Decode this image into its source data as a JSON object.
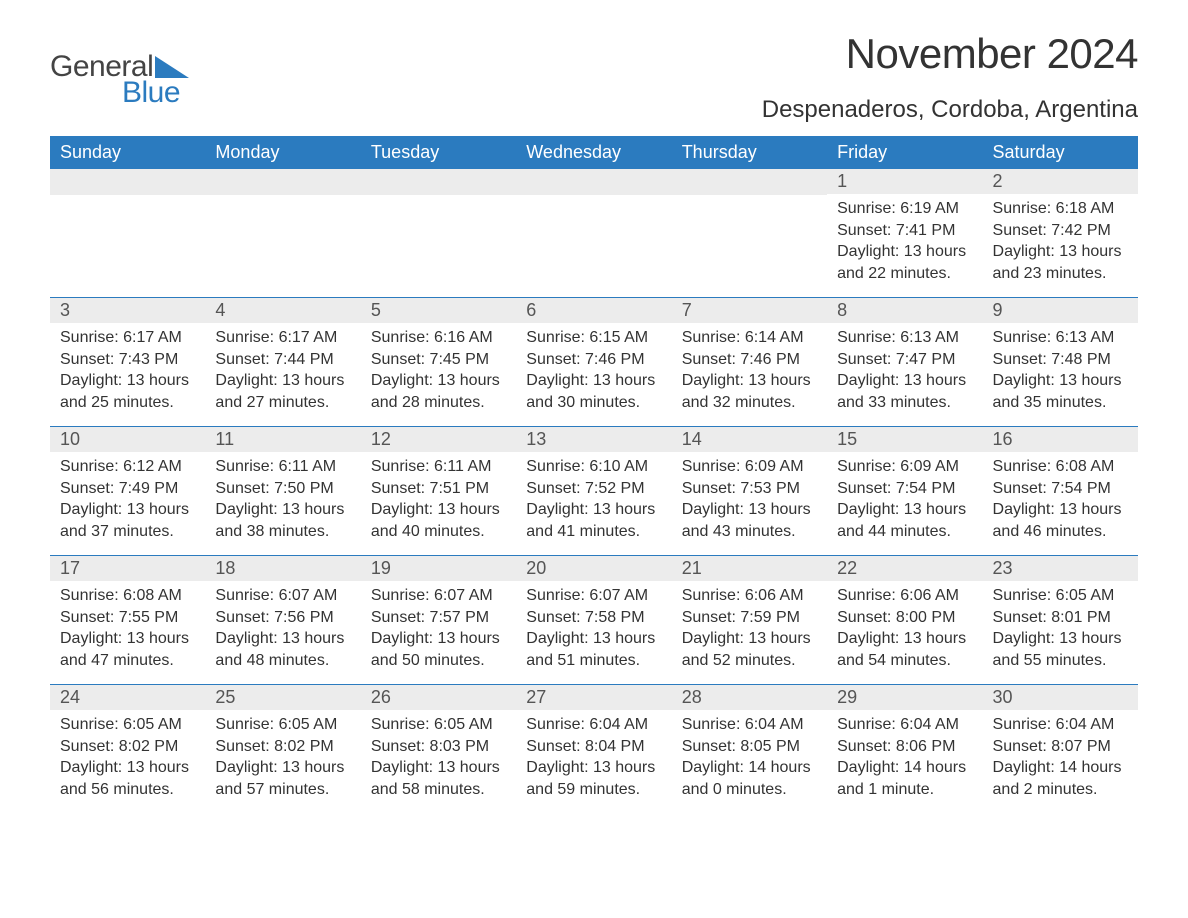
{
  "brand": {
    "part1": "General",
    "part2": "Blue",
    "triangle_color": "#2b7bbf"
  },
  "title": "November 2024",
  "location": "Despenaderos, Cordoba, Argentina",
  "colors": {
    "header_bg": "#2b7bbf",
    "header_text": "#ffffff",
    "daynum_bg": "#ececec",
    "text": "#333333",
    "row_border": "#2b7bbf",
    "page_bg": "#ffffff"
  },
  "fonts": {
    "title_size_pt": 32,
    "location_size_pt": 18,
    "dow_size_pt": 14,
    "daynum_size_pt": 14,
    "body_size_pt": 12
  },
  "dow": [
    "Sunday",
    "Monday",
    "Tuesday",
    "Wednesday",
    "Thursday",
    "Friday",
    "Saturday"
  ],
  "weeks": [
    [
      null,
      null,
      null,
      null,
      null,
      {
        "n": "1",
        "sunrise": "Sunrise: 6:19 AM",
        "sunset": "Sunset: 7:41 PM",
        "day1": "Daylight: 13 hours",
        "day2": "and 22 minutes."
      },
      {
        "n": "2",
        "sunrise": "Sunrise: 6:18 AM",
        "sunset": "Sunset: 7:42 PM",
        "day1": "Daylight: 13 hours",
        "day2": "and 23 minutes."
      }
    ],
    [
      {
        "n": "3",
        "sunrise": "Sunrise: 6:17 AM",
        "sunset": "Sunset: 7:43 PM",
        "day1": "Daylight: 13 hours",
        "day2": "and 25 minutes."
      },
      {
        "n": "4",
        "sunrise": "Sunrise: 6:17 AM",
        "sunset": "Sunset: 7:44 PM",
        "day1": "Daylight: 13 hours",
        "day2": "and 27 minutes."
      },
      {
        "n": "5",
        "sunrise": "Sunrise: 6:16 AM",
        "sunset": "Sunset: 7:45 PM",
        "day1": "Daylight: 13 hours",
        "day2": "and 28 minutes."
      },
      {
        "n": "6",
        "sunrise": "Sunrise: 6:15 AM",
        "sunset": "Sunset: 7:46 PM",
        "day1": "Daylight: 13 hours",
        "day2": "and 30 minutes."
      },
      {
        "n": "7",
        "sunrise": "Sunrise: 6:14 AM",
        "sunset": "Sunset: 7:46 PM",
        "day1": "Daylight: 13 hours",
        "day2": "and 32 minutes."
      },
      {
        "n": "8",
        "sunrise": "Sunrise: 6:13 AM",
        "sunset": "Sunset: 7:47 PM",
        "day1": "Daylight: 13 hours",
        "day2": "and 33 minutes."
      },
      {
        "n": "9",
        "sunrise": "Sunrise: 6:13 AM",
        "sunset": "Sunset: 7:48 PM",
        "day1": "Daylight: 13 hours",
        "day2": "and 35 minutes."
      }
    ],
    [
      {
        "n": "10",
        "sunrise": "Sunrise: 6:12 AM",
        "sunset": "Sunset: 7:49 PM",
        "day1": "Daylight: 13 hours",
        "day2": "and 37 minutes."
      },
      {
        "n": "11",
        "sunrise": "Sunrise: 6:11 AM",
        "sunset": "Sunset: 7:50 PM",
        "day1": "Daylight: 13 hours",
        "day2": "and 38 minutes."
      },
      {
        "n": "12",
        "sunrise": "Sunrise: 6:11 AM",
        "sunset": "Sunset: 7:51 PM",
        "day1": "Daylight: 13 hours",
        "day2": "and 40 minutes."
      },
      {
        "n": "13",
        "sunrise": "Sunrise: 6:10 AM",
        "sunset": "Sunset: 7:52 PM",
        "day1": "Daylight: 13 hours",
        "day2": "and 41 minutes."
      },
      {
        "n": "14",
        "sunrise": "Sunrise: 6:09 AM",
        "sunset": "Sunset: 7:53 PM",
        "day1": "Daylight: 13 hours",
        "day2": "and 43 minutes."
      },
      {
        "n": "15",
        "sunrise": "Sunrise: 6:09 AM",
        "sunset": "Sunset: 7:54 PM",
        "day1": "Daylight: 13 hours",
        "day2": "and 44 minutes."
      },
      {
        "n": "16",
        "sunrise": "Sunrise: 6:08 AM",
        "sunset": "Sunset: 7:54 PM",
        "day1": "Daylight: 13 hours",
        "day2": "and 46 minutes."
      }
    ],
    [
      {
        "n": "17",
        "sunrise": "Sunrise: 6:08 AM",
        "sunset": "Sunset: 7:55 PM",
        "day1": "Daylight: 13 hours",
        "day2": "and 47 minutes."
      },
      {
        "n": "18",
        "sunrise": "Sunrise: 6:07 AM",
        "sunset": "Sunset: 7:56 PM",
        "day1": "Daylight: 13 hours",
        "day2": "and 48 minutes."
      },
      {
        "n": "19",
        "sunrise": "Sunrise: 6:07 AM",
        "sunset": "Sunset: 7:57 PM",
        "day1": "Daylight: 13 hours",
        "day2": "and 50 minutes."
      },
      {
        "n": "20",
        "sunrise": "Sunrise: 6:07 AM",
        "sunset": "Sunset: 7:58 PM",
        "day1": "Daylight: 13 hours",
        "day2": "and 51 minutes."
      },
      {
        "n": "21",
        "sunrise": "Sunrise: 6:06 AM",
        "sunset": "Sunset: 7:59 PM",
        "day1": "Daylight: 13 hours",
        "day2": "and 52 minutes."
      },
      {
        "n": "22",
        "sunrise": "Sunrise: 6:06 AM",
        "sunset": "Sunset: 8:00 PM",
        "day1": "Daylight: 13 hours",
        "day2": "and 54 minutes."
      },
      {
        "n": "23",
        "sunrise": "Sunrise: 6:05 AM",
        "sunset": "Sunset: 8:01 PM",
        "day1": "Daylight: 13 hours",
        "day2": "and 55 minutes."
      }
    ],
    [
      {
        "n": "24",
        "sunrise": "Sunrise: 6:05 AM",
        "sunset": "Sunset: 8:02 PM",
        "day1": "Daylight: 13 hours",
        "day2": "and 56 minutes."
      },
      {
        "n": "25",
        "sunrise": "Sunrise: 6:05 AM",
        "sunset": "Sunset: 8:02 PM",
        "day1": "Daylight: 13 hours",
        "day2": "and 57 minutes."
      },
      {
        "n": "26",
        "sunrise": "Sunrise: 6:05 AM",
        "sunset": "Sunset: 8:03 PM",
        "day1": "Daylight: 13 hours",
        "day2": "and 58 minutes."
      },
      {
        "n": "27",
        "sunrise": "Sunrise: 6:04 AM",
        "sunset": "Sunset: 8:04 PM",
        "day1": "Daylight: 13 hours",
        "day2": "and 59 minutes."
      },
      {
        "n": "28",
        "sunrise": "Sunrise: 6:04 AM",
        "sunset": "Sunset: 8:05 PM",
        "day1": "Daylight: 14 hours",
        "day2": "and 0 minutes."
      },
      {
        "n": "29",
        "sunrise": "Sunrise: 6:04 AM",
        "sunset": "Sunset: 8:06 PM",
        "day1": "Daylight: 14 hours",
        "day2": "and 1 minute."
      },
      {
        "n": "30",
        "sunrise": "Sunrise: 6:04 AM",
        "sunset": "Sunset: 8:07 PM",
        "day1": "Daylight: 14 hours",
        "day2": "and 2 minutes."
      }
    ]
  ]
}
